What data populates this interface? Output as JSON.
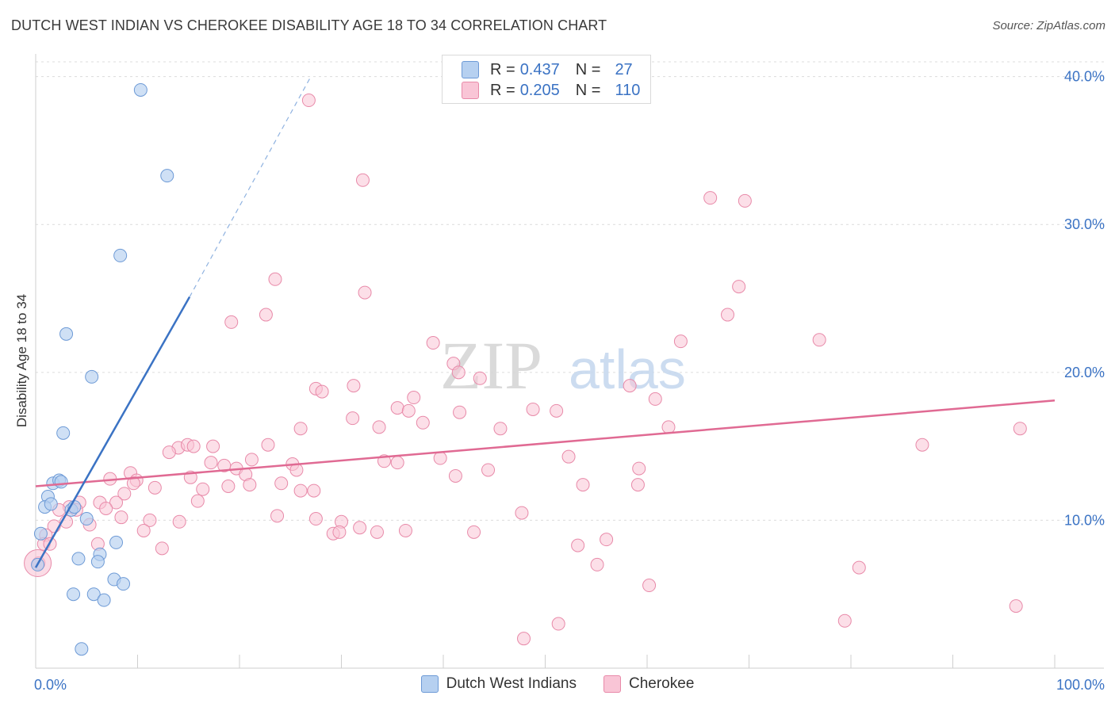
{
  "title": "DUTCH WEST INDIAN VS CHEROKEE DISABILITY AGE 18 TO 34 CORRELATION CHART",
  "source": "Source: ZipAtlas.com",
  "watermark": {
    "zip": "ZIP",
    "atlas": "atlas"
  },
  "legend": {
    "r_label": "R =",
    "n_label": "N =",
    "rows": [
      {
        "r": "0.437",
        "n": "27",
        "fill": "#b6d0f0",
        "stroke": "#6d9ad6"
      },
      {
        "r": "0.205",
        "n": "110",
        "fill": "#f9c5d6",
        "stroke": "#e88aa9"
      }
    ]
  },
  "bottom_legend": [
    {
      "label": "Dutch West Indians",
      "fill": "#b6d0f0",
      "stroke": "#6d9ad6"
    },
    {
      "label": "Cherokee",
      "fill": "#f9c5d6",
      "stroke": "#e88aa9"
    }
  ],
  "chart_data": {
    "type": "scatter",
    "title": "DUTCH WEST INDIAN VS CHEROKEE DISABILITY AGE 18 TO 34 CORRELATION CHART",
    "xlabel": "",
    "ylabel": "Disability Age 18 to 34",
    "xlim": [
      0,
      100
    ],
    "ylim": [
      0,
      41
    ],
    "x_tick_labels": [
      "0.0%",
      "100.0%"
    ],
    "y_ticks": [
      10,
      20,
      30,
      40
    ],
    "y_tick_labels": [
      "10.0%",
      "20.0%",
      "30.0%",
      "40.0%"
    ],
    "colors": {
      "blue": "#3b73c4",
      "pink": "#e06a93",
      "tick_text": "#3b73c4"
    },
    "series": [
      {
        "name": "Dutch West Indians",
        "color": "#6d9ad6",
        "fill": "#b6d0f0",
        "points": [
          [
            10.3,
            39.1
          ],
          [
            12.9,
            33.3
          ],
          [
            8.3,
            27.9
          ],
          [
            3.0,
            22.6
          ],
          [
            5.5,
            19.7
          ],
          [
            2.7,
            15.9
          ],
          [
            1.7,
            12.5
          ],
          [
            2.3,
            12.7
          ],
          [
            2.5,
            12.6
          ],
          [
            1.2,
            11.6
          ],
          [
            0.9,
            10.9
          ],
          [
            1.5,
            11.1
          ],
          [
            3.5,
            10.7
          ],
          [
            3.8,
            10.9
          ],
          [
            5.0,
            10.1
          ],
          [
            0.5,
            9.1
          ],
          [
            7.9,
            8.5
          ],
          [
            6.3,
            7.7
          ],
          [
            4.2,
            7.4
          ],
          [
            6.1,
            7.2
          ],
          [
            0.2,
            7.0
          ],
          [
            7.7,
            6.0
          ],
          [
            8.6,
            5.7
          ],
          [
            3.7,
            5.0
          ],
          [
            5.7,
            5.0
          ],
          [
            6.7,
            4.6
          ],
          [
            4.5,
            1.3
          ]
        ],
        "trend": {
          "x": [
            0.0,
            15.1
          ],
          "y": [
            6.8,
            25.1
          ],
          "dash_to": [
            27.0,
            40.0
          ]
        }
      },
      {
        "name": "Cherokee",
        "color": "#e88aa9",
        "fill": "#f9c5d6",
        "points": [
          [
            26.8,
            38.4
          ],
          [
            32.1,
            33.0
          ],
          [
            66.2,
            31.8
          ],
          [
            69.6,
            31.6
          ],
          [
            23.5,
            26.3
          ],
          [
            32.3,
            25.4
          ],
          [
            69.0,
            25.8
          ],
          [
            22.6,
            23.9
          ],
          [
            19.2,
            23.4
          ],
          [
            67.9,
            23.9
          ],
          [
            39.0,
            22.0
          ],
          [
            63.3,
            22.1
          ],
          [
            76.9,
            22.2
          ],
          [
            41.0,
            20.6
          ],
          [
            41.5,
            20.0
          ],
          [
            43.6,
            19.6
          ],
          [
            31.2,
            19.1
          ],
          [
            58.3,
            19.1
          ],
          [
            27.5,
            18.9
          ],
          [
            28.1,
            18.7
          ],
          [
            60.8,
            18.2
          ],
          [
            37.1,
            18.3
          ],
          [
            35.5,
            17.6
          ],
          [
            36.6,
            17.4
          ],
          [
            48.8,
            17.5
          ],
          [
            51.1,
            17.4
          ],
          [
            41.6,
            17.3
          ],
          [
            31.1,
            16.9
          ],
          [
            33.7,
            16.3
          ],
          [
            38.0,
            16.6
          ],
          [
            26.0,
            16.2
          ],
          [
            45.6,
            16.2
          ],
          [
            62.1,
            16.3
          ],
          [
            14.0,
            14.9
          ],
          [
            14.9,
            15.1
          ],
          [
            15.5,
            15.0
          ],
          [
            17.4,
            15.0
          ],
          [
            22.8,
            15.1
          ],
          [
            87.0,
            15.1
          ],
          [
            13.1,
            14.6
          ],
          [
            17.2,
            13.9
          ],
          [
            18.5,
            13.7
          ],
          [
            21.2,
            14.1
          ],
          [
            25.2,
            13.8
          ],
          [
            34.2,
            14.0
          ],
          [
            35.5,
            13.9
          ],
          [
            39.7,
            14.2
          ],
          [
            52.3,
            14.3
          ],
          [
            59.2,
            13.5
          ],
          [
            25.6,
            13.4
          ],
          [
            44.4,
            13.4
          ],
          [
            19.7,
            13.5
          ],
          [
            9.3,
            13.2
          ],
          [
            20.6,
            13.1
          ],
          [
            15.2,
            12.9
          ],
          [
            9.9,
            12.7
          ],
          [
            7.3,
            12.8
          ],
          [
            9.6,
            12.5
          ],
          [
            18.9,
            12.3
          ],
          [
            21.0,
            12.4
          ],
          [
            24.1,
            12.5
          ],
          [
            41.2,
            13.0
          ],
          [
            53.7,
            12.4
          ],
          [
            59.1,
            12.4
          ],
          [
            11.7,
            12.2
          ],
          [
            16.4,
            12.1
          ],
          [
            26.0,
            12.0
          ],
          [
            27.3,
            12.0
          ],
          [
            8.7,
            11.8
          ],
          [
            6.3,
            11.2
          ],
          [
            7.9,
            11.2
          ],
          [
            15.9,
            11.3
          ],
          [
            4.3,
            11.2
          ],
          [
            6.9,
            10.8
          ],
          [
            3.3,
            10.9
          ],
          [
            4.0,
            10.7
          ],
          [
            2.3,
            10.7
          ],
          [
            8.4,
            10.2
          ],
          [
            11.2,
            10.0
          ],
          [
            23.7,
            10.3
          ],
          [
            27.5,
            10.1
          ],
          [
            30.0,
            9.9
          ],
          [
            47.7,
            10.5
          ],
          [
            3.0,
            9.9
          ],
          [
            5.3,
            9.7
          ],
          [
            14.1,
            9.9
          ],
          [
            1.8,
            9.6
          ],
          [
            10.6,
            9.3
          ],
          [
            31.8,
            9.5
          ],
          [
            33.5,
            9.2
          ],
          [
            36.3,
            9.3
          ],
          [
            43.0,
            9.2
          ],
          [
            29.2,
            9.1
          ],
          [
            29.8,
            9.2
          ],
          [
            1.0,
            9.0
          ],
          [
            6.1,
            8.4
          ],
          [
            12.4,
            8.1
          ],
          [
            53.2,
            8.3
          ],
          [
            56.0,
            8.7
          ],
          [
            0.8,
            8.4
          ],
          [
            1.4,
            8.4
          ],
          [
            55.1,
            7.0
          ],
          [
            80.8,
            6.8
          ],
          [
            60.2,
            5.6
          ],
          [
            0.3,
            7.1
          ],
          [
            79.4,
            3.2
          ],
          [
            96.2,
            4.2
          ],
          [
            51.3,
            3.0
          ],
          [
            47.9,
            2.0
          ],
          [
            96.6,
            16.2
          ]
        ],
        "trend": {
          "x": [
            0.0,
            100.0
          ],
          "y": [
            12.3,
            18.1
          ]
        }
      }
    ]
  }
}
